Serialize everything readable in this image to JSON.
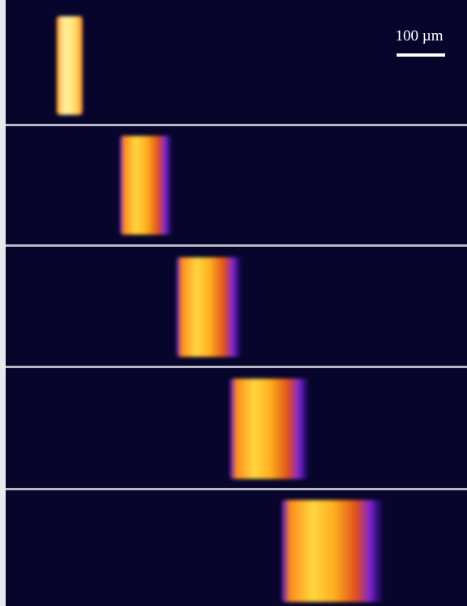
{
  "scale_bar": {
    "label": "100 µm"
  }
}
